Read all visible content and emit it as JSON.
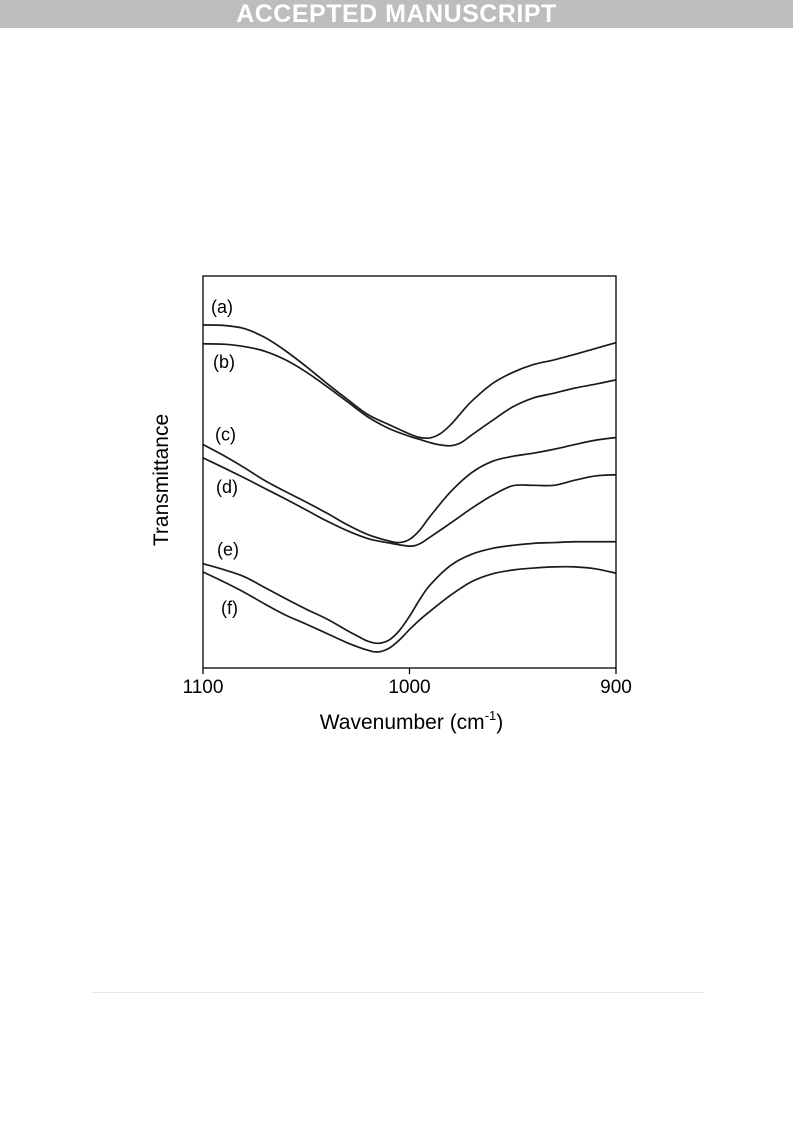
{
  "banner": {
    "text": "ACCEPTED MANUSCRIPT"
  },
  "chart_data": {
    "type": "line",
    "title": "",
    "xlabel": "Wavenumber (cm",
    "xlabel_superscript": "-1",
    "xlabel_suffix": ")",
    "ylabel": "Transmittance",
    "xlim": [
      1100,
      900
    ],
    "x_reversed": true,
    "ylim": [
      0,
      100
    ],
    "y_ticks_shown": false,
    "xticks": [
      1100,
      1000,
      900
    ],
    "xtick_labels": [
      "1100",
      "1000",
      "900"
    ],
    "grid": false,
    "legend": "inline labels",
    "series": [
      {
        "name": "(a)",
        "x": [
          1100,
          1090,
          1080,
          1070,
          1060,
          1050,
          1040,
          1030,
          1020,
          1010,
          1000,
          995,
          990,
          985,
          980,
          975,
          970,
          960,
          950,
          940,
          930,
          920,
          910,
          900
        ],
        "y": [
          87.5,
          87.4,
          86.6,
          84.3,
          80.9,
          76.9,
          72.6,
          68.5,
          64.6,
          62.1,
          59.7,
          58.8,
          58.7,
          59.8,
          62.1,
          65.1,
          68.0,
          72.5,
          75.4,
          77.4,
          78.6,
          80.0,
          81.5,
          83.0
        ]
      },
      {
        "name": "(b)",
        "x": [
          1100,
          1090,
          1080,
          1070,
          1060,
          1050,
          1040,
          1030,
          1020,
          1010,
          1000,
          995,
          990,
          985,
          980,
          975,
          970,
          960,
          950,
          940,
          930,
          920,
          910,
          900
        ],
        "y": [
          82.7,
          82.6,
          82.0,
          80.8,
          78.6,
          75.5,
          71.8,
          67.9,
          64.0,
          61.1,
          59.1,
          58.3,
          57.5,
          56.9,
          56.7,
          57.5,
          59.4,
          63.1,
          66.6,
          68.9,
          70.1,
          71.4,
          72.4,
          73.5
        ]
      },
      {
        "name": "(c)",
        "x": [
          1100,
          1090,
          1080,
          1070,
          1060,
          1050,
          1040,
          1030,
          1020,
          1010,
          1005,
          1000,
          995,
          990,
          980,
          970,
          960,
          950,
          940,
          930,
          920,
          910,
          900
        ],
        "y": [
          57.0,
          54.2,
          51.1,
          47.8,
          45.0,
          42.3,
          39.5,
          36.5,
          34.0,
          32.4,
          32.0,
          32.8,
          35.2,
          38.7,
          45.0,
          49.8,
          52.7,
          54.0,
          54.8,
          55.8,
          57.0,
          58.1,
          58.8
        ]
      },
      {
        "name": "(d)",
        "x": [
          1100,
          1090,
          1080,
          1070,
          1060,
          1050,
          1040,
          1030,
          1020,
          1010,
          1000,
          995,
          990,
          980,
          970,
          960,
          950,
          940,
          930,
          920,
          910,
          900
        ],
        "y": [
          53.6,
          51.1,
          48.5,
          45.8,
          43.1,
          40.3,
          37.5,
          35.0,
          33.0,
          31.9,
          31.1,
          31.7,
          33.4,
          37.0,
          40.7,
          44.0,
          46.5,
          46.6,
          46.6,
          47.9,
          49.0,
          49.3
        ]
      },
      {
        "name": "(e)",
        "x": [
          1100,
          1090,
          1080,
          1070,
          1060,
          1050,
          1040,
          1030,
          1025,
          1020,
          1015,
          1010,
          1005,
          1000,
          995,
          990,
          980,
          970,
          960,
          950,
          940,
          930,
          920,
          910,
          900
        ],
        "y": [
          26.6,
          25.1,
          23.3,
          20.5,
          17.7,
          15.0,
          12.5,
          9.5,
          8.1,
          6.8,
          6.3,
          7.1,
          9.5,
          13.2,
          17.5,
          21.2,
          26.2,
          29.0,
          30.5,
          31.3,
          31.8,
          32.0,
          32.2,
          32.2,
          32.2
        ]
      },
      {
        "name": "(f)",
        "x": [
          1100,
          1090,
          1080,
          1070,
          1060,
          1050,
          1040,
          1030,
          1020,
          1015,
          1010,
          1005,
          1000,
          995,
          990,
          980,
          970,
          960,
          950,
          940,
          930,
          920,
          910,
          900
        ],
        "y": [
          24.5,
          22.0,
          19.3,
          16.3,
          13.5,
          11.2,
          8.8,
          6.4,
          4.5,
          4.1,
          5.0,
          7.1,
          9.8,
          12.3,
          14.5,
          18.6,
          22.0,
          24.0,
          25.0,
          25.5,
          25.8,
          25.8,
          25.3,
          24.2
        ]
      }
    ]
  }
}
